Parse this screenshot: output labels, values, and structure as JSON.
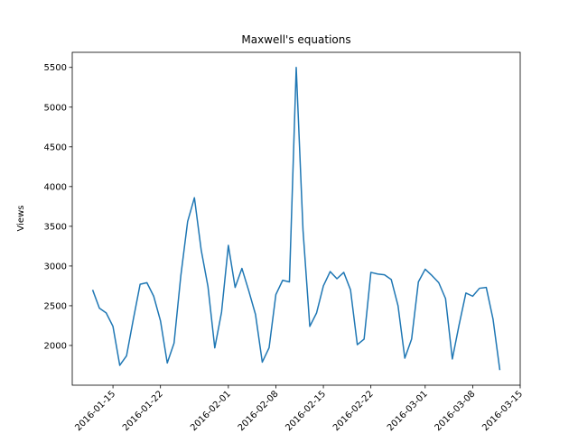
{
  "chart_data": {
    "type": "line",
    "title": "Maxwell's equations",
    "y_label": "Views",
    "x": [
      "2016-01-12",
      "2016-01-13",
      "2016-01-14",
      "2016-01-15",
      "2016-01-16",
      "2016-01-17",
      "2016-01-18",
      "2016-01-19",
      "2016-01-20",
      "2016-01-21",
      "2016-01-22",
      "2016-01-23",
      "2016-01-24",
      "2016-01-25",
      "2016-01-26",
      "2016-01-27",
      "2016-01-28",
      "2016-01-29",
      "2016-01-30",
      "2016-01-31",
      "2016-02-01",
      "2016-02-02",
      "2016-02-03",
      "2016-02-04",
      "2016-02-05",
      "2016-02-06",
      "2016-02-07",
      "2016-02-08",
      "2016-02-09",
      "2016-02-10",
      "2016-02-11",
      "2016-02-12",
      "2016-02-13",
      "2016-02-14",
      "2016-02-15",
      "2016-02-16",
      "2016-02-17",
      "2016-02-18",
      "2016-02-19",
      "2016-02-20",
      "2016-02-21",
      "2016-02-22",
      "2016-02-23",
      "2016-02-24",
      "2016-02-25",
      "2016-02-26",
      "2016-02-27",
      "2016-02-28",
      "2016-02-29",
      "2016-03-01",
      "2016-03-02",
      "2016-03-03",
      "2016-03-04",
      "2016-03-05",
      "2016-03-06",
      "2016-03-07",
      "2016-03-08",
      "2016-03-09",
      "2016-03-10",
      "2016-03-11",
      "2016-03-12"
    ],
    "series": [
      {
        "name": "Views",
        "color": "#1f77b4",
        "values": [
          2700,
          2470,
          2410,
          2240,
          1750,
          1870,
          2330,
          2770,
          2790,
          2620,
          2310,
          1780,
          2030,
          2880,
          3560,
          3860,
          3200,
          2740,
          1970,
          2420,
          3260,
          2730,
          2970,
          2690,
          2390,
          1790,
          1970,
          2640,
          2820,
          2800,
          5500,
          3450,
          2240,
          2410,
          2750,
          2930,
          2840,
          2920,
          2700,
          2010,
          2080,
          2920,
          2900,
          2890,
          2830,
          2500,
          1840,
          2080,
          2800,
          2960,
          2880,
          2790,
          2590,
          1830,
          2260,
          2660,
          2620,
          2720,
          2730,
          2330,
          1690
        ]
      }
    ],
    "xlim": [
      "2016-01-09",
      "2016-03-15"
    ],
    "xticks": [
      "2016-01-15",
      "2016-01-22",
      "2016-02-01",
      "2016-02-08",
      "2016-02-15",
      "2016-02-22",
      "2016-03-01",
      "2016-03-08",
      "2016-03-15"
    ],
    "ylim": [
      1500,
      5690
    ],
    "yticks": [
      2000,
      2500,
      3000,
      3500,
      4000,
      4500,
      5000,
      5500
    ]
  }
}
